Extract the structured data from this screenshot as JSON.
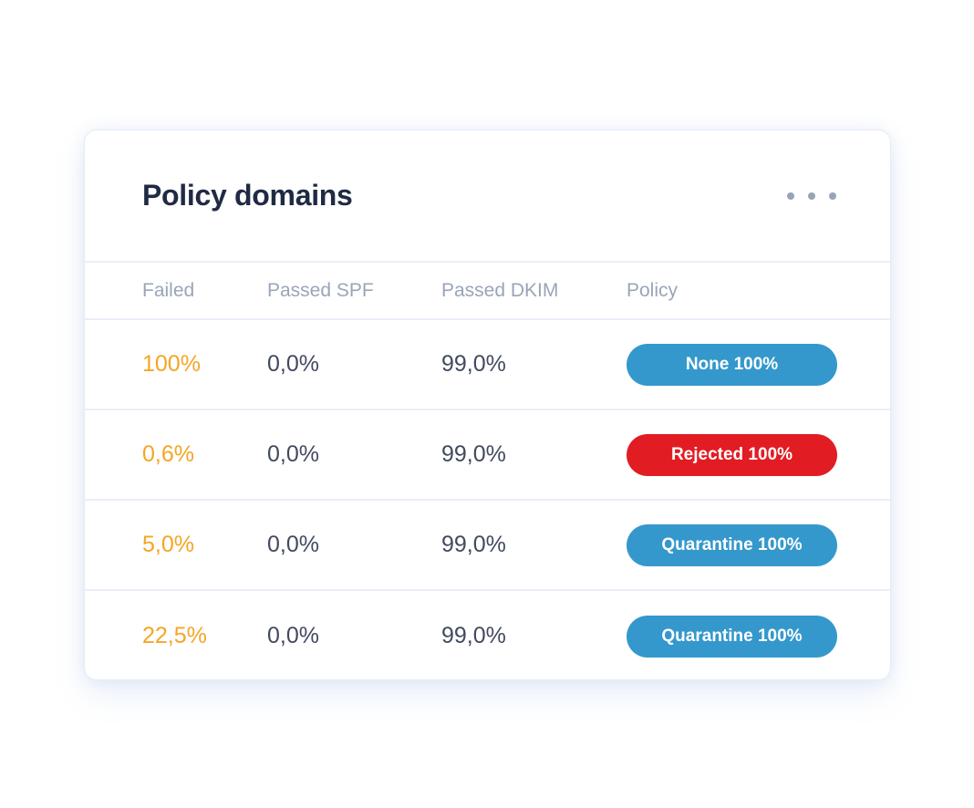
{
  "card": {
    "title": "Policy domains",
    "menu_icon": "ellipsis-icon"
  },
  "table": {
    "columns": [
      {
        "id": "failed",
        "label": "Failed"
      },
      {
        "id": "passed_spf",
        "label": "Passed SPF"
      },
      {
        "id": "passed_dkim",
        "label": "Passed DKIM"
      },
      {
        "id": "policy",
        "label": "Policy"
      }
    ],
    "rows": [
      {
        "failed": "100%",
        "passed_spf": "0,0%",
        "passed_dkim": "99,0%",
        "policy_label": "None 100%",
        "policy_color": "#3598cc"
      },
      {
        "failed": "0,6%",
        "passed_spf": "0,0%",
        "passed_dkim": "99,0%",
        "policy_label": "Rejected 100%",
        "policy_color": "#e11d23"
      },
      {
        "failed": "5,0%",
        "passed_spf": "0,0%",
        "passed_dkim": "99,0%",
        "policy_label": "Quarantine 100%",
        "policy_color": "#3598cc"
      },
      {
        "failed": "22,5%",
        "passed_spf": "0,0%",
        "passed_dkim": "99,0%",
        "policy_label": "Quarantine 100%",
        "policy_color": "#3598cc"
      }
    ]
  },
  "colors": {
    "title_text": "#202a43",
    "header_text": "#9aa5b8",
    "value_text": "#424a5f",
    "failed_text": "#f5a524",
    "badge_blue": "#3598cc",
    "badge_red": "#e11d23",
    "separator": "#e9eef7",
    "dots": "#99a3b6"
  }
}
